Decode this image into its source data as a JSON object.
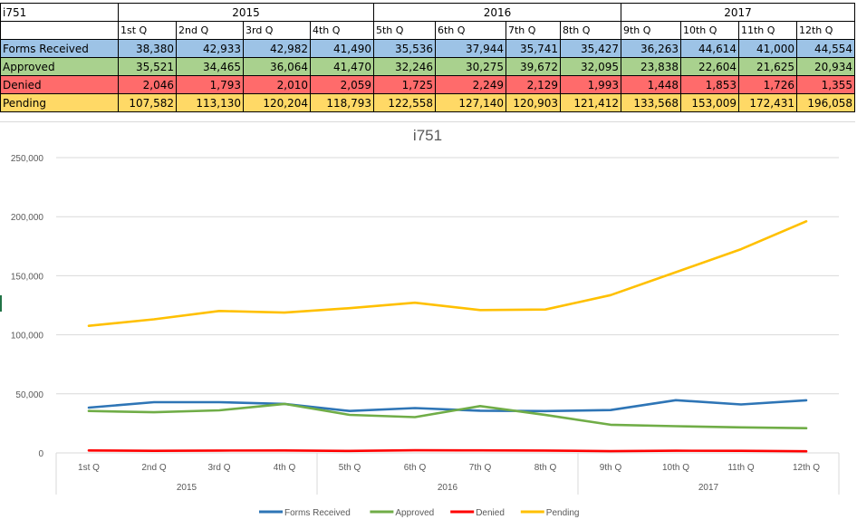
{
  "sheet": {
    "corner_label": "i751",
    "year_headers": [
      "2015",
      "2016",
      "2017"
    ],
    "quarter_headers": [
      "1st Q",
      "2nd Q",
      "3rd Q",
      "4th Q",
      "5th Q",
      "6th Q",
      "7th Q",
      "8th Q",
      "9th Q",
      "10th Q",
      "11th Q",
      "12th Q"
    ],
    "rows": [
      {
        "label": "Forms Received",
        "color": "#9dc3e6",
        "values": [
          "38,380",
          "42,933",
          "42,982",
          "41,490",
          "35,536",
          "37,944",
          "35,741",
          "35,427",
          "36,263",
          "44,614",
          "41,000",
          "44,554"
        ]
      },
      {
        "label": "Approved",
        "color": "#a9d18e",
        "values": [
          "35,521",
          "34,465",
          "36,064",
          "41,470",
          "32,246",
          "30,275",
          "39,672",
          "32,095",
          "23,838",
          "22,604",
          "21,625",
          "20,934"
        ]
      },
      {
        "label": "Denied",
        "color": "#ff6b6b",
        "values": [
          "2,046",
          "1,793",
          "2,010",
          "2,059",
          "1,725",
          "2,249",
          "2,129",
          "1,993",
          "1,448",
          "1,853",
          "1,726",
          "1,355"
        ]
      },
      {
        "label": "Pending",
        "color": "#ffd966",
        "values": [
          "107,582",
          "113,130",
          "120,204",
          "118,793",
          "122,558",
          "127,140",
          "120,903",
          "121,412",
          "133,568",
          "153,009",
          "172,431",
          "196,058"
        ]
      }
    ]
  },
  "chart_data": {
    "type": "line",
    "title": "i751",
    "categories": [
      "1st Q",
      "2nd Q",
      "3rd Q",
      "4th Q",
      "5th Q",
      "6th Q",
      "7th Q",
      "8th Q",
      "9th Q",
      "10th Q",
      "11th Q",
      "12th Q"
    ],
    "groups": [
      {
        "label": "2015",
        "count": 4
      },
      {
        "label": "2016",
        "count": 4
      },
      {
        "label": "2017",
        "count": 4
      }
    ],
    "y_ticks": [
      "0",
      "50,000",
      "100,000",
      "150,000",
      "200,000",
      "250,000"
    ],
    "ylim": [
      0,
      250000
    ],
    "grid": true,
    "legend_position": "bottom",
    "series": [
      {
        "name": "Forms Received",
        "color": "#2e75b6",
        "values": [
          38380,
          42933,
          42982,
          41490,
          35536,
          37944,
          35741,
          35427,
          36263,
          44614,
          41000,
          44554
        ]
      },
      {
        "name": "Approved",
        "color": "#70ad47",
        "values": [
          35521,
          34465,
          36064,
          41470,
          32246,
          30275,
          39672,
          32095,
          23838,
          22604,
          21625,
          20934
        ]
      },
      {
        "name": "Denied",
        "color": "#ff0000",
        "values": [
          2046,
          1793,
          2010,
          2059,
          1725,
          2249,
          2129,
          1993,
          1448,
          1853,
          1726,
          1355
        ]
      },
      {
        "name": "Pending",
        "color": "#ffc000",
        "values": [
          107582,
          113130,
          120204,
          118793,
          122558,
          127140,
          120903,
          121412,
          133568,
          153009,
          172431,
          196058
        ]
      }
    ]
  }
}
